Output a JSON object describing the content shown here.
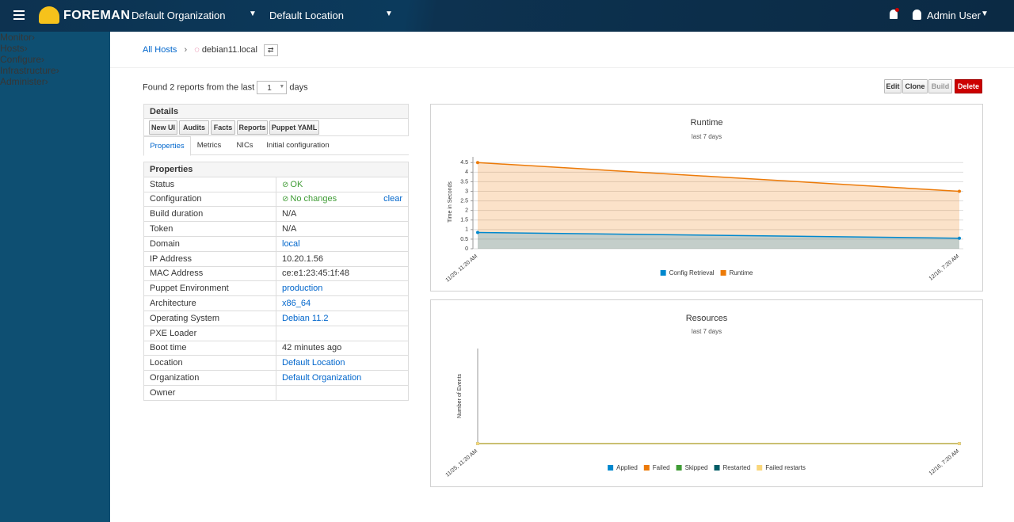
{
  "header": {
    "brand": "FOREMAN",
    "organization": "Default Organization",
    "location": "Default Location",
    "user": "Admin User"
  },
  "nav": [
    "Monitor",
    "Hosts",
    "Configure",
    "Infrastructure",
    "Administer"
  ],
  "breadcrumb": {
    "parent": "All Hosts",
    "current": "debian11.local"
  },
  "report_filter": {
    "prefix": "Found 2 reports from the last",
    "value": "1",
    "suffix": "days"
  },
  "actions": [
    "Edit",
    "Clone",
    "Build",
    "Delete"
  ],
  "details": {
    "title": "Details",
    "buttons": [
      "New UI",
      "Audits",
      "Facts",
      "Reports",
      "Puppet YAML"
    ],
    "tabs": [
      "Properties",
      "Metrics",
      "NICs",
      "Initial configuration"
    ]
  },
  "properties": {
    "title": "Properties",
    "clear": "clear",
    "rows": [
      [
        "Status",
        "OK"
      ],
      [
        "Configuration",
        "No changes"
      ],
      [
        "Build duration",
        "N/A"
      ],
      [
        "Token",
        "N/A"
      ],
      [
        "Domain",
        "local"
      ],
      [
        "IP Address",
        "10.20.1.56"
      ],
      [
        "MAC Address",
        "ce:e1:23:45:1f:48"
      ],
      [
        "Puppet Environment",
        "production"
      ],
      [
        "Architecture",
        "x86_64"
      ],
      [
        "Operating System",
        "Debian 11.2"
      ],
      [
        "PXE Loader"
      ],
      [
        "Boot time",
        "42 minutes ago"
      ],
      [
        "Location",
        "Default Location"
      ],
      [
        "Organization",
        "Default Organization"
      ],
      [
        "Owner"
      ]
    ]
  },
  "chart_data": [
    {
      "type": "area",
      "title": "Runtime",
      "subtitle": "last 7 days",
      "y_label": "Time in Seconds",
      "categories": [
        "11/25, 11:20 AM",
        "12/16, 7:20 AM"
      ],
      "series": [
        {
          "name": "Config Retrieval",
          "color": "#0088ce",
          "values": [
            0.85,
            0.55
          ]
        },
        {
          "name": "Runtime",
          "color": "#ec7a08",
          "values": [
            4.5,
            3.0
          ]
        }
      ],
      "ylim": [
        0,
        4.8
      ],
      "yticks": [
        0,
        0.5,
        1,
        1.5,
        2,
        2.5,
        3,
        3.5,
        4,
        4.5
      ],
      "grid": true
    },
    {
      "type": "line",
      "title": "Resources",
      "subtitle": "last 7 days",
      "y_label": "Number of Events",
      "categories": [
        "11/25, 11:20 AM",
        "12/16, 7:20 AM"
      ],
      "series": [
        {
          "name": "Applied",
          "color": "#0088ce",
          "values": [
            0,
            0
          ]
        },
        {
          "name": "Failed",
          "color": "#ec7a08",
          "values": [
            0,
            0
          ]
        },
        {
          "name": "Skipped",
          "color": "#3f9c35",
          "values": [
            0,
            0
          ]
        },
        {
          "name": "Restarted",
          "color": "#005c66",
          "values": [
            0,
            0
          ]
        },
        {
          "name": "Failed restarts",
          "color": "#f9d67a",
          "values": [
            0,
            0
          ]
        }
      ],
      "ylim": [
        0,
        1
      ],
      "grid": false
    }
  ]
}
